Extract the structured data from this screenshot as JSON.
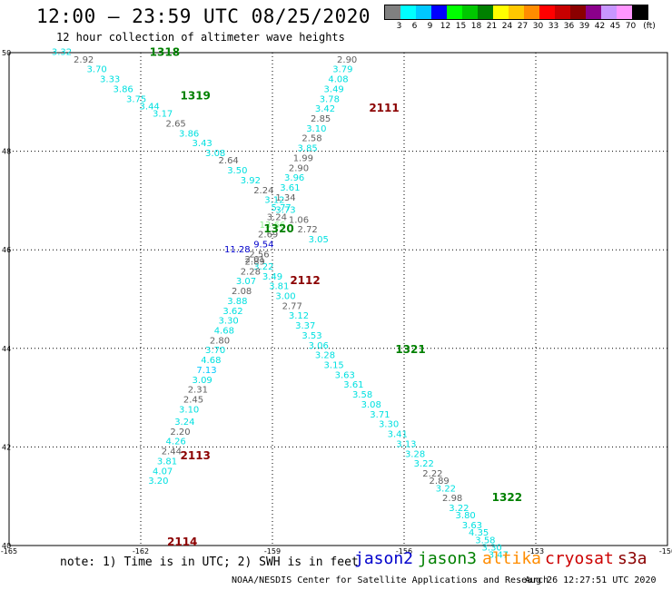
{
  "header": {
    "title": "12:00 – 23:59 UTC 08/25/2020",
    "subtitle": "12 hour collection of altimeter wave heights"
  },
  "legend": {
    "colors": [
      "#808080",
      "#00ffff",
      "#00c8ff",
      "#0000ff",
      "#00ff00",
      "#00c800",
      "#008000",
      "#ffff00",
      "#ffc800",
      "#ff8c00",
      "#ff0000",
      "#c80000",
      "#8b0000",
      "#8b008b",
      "#c896ff",
      "#ff96ff",
      "#000000"
    ],
    "labels": [
      "3",
      "6",
      "9",
      "12",
      "15",
      "18",
      "21",
      "24",
      "27",
      "30",
      "33",
      "36",
      "39",
      "42",
      "45",
      "70"
    ],
    "unit": "(ft)"
  },
  "map": {
    "lon_ticks": [
      "-165",
      "-162",
      "-159",
      "-156",
      "-153",
      "-150"
    ],
    "lat_ticks": [
      "50",
      "48",
      "46",
      "44",
      "42",
      "40"
    ]
  },
  "tracks": [
    {
      "id": "1318",
      "sat_color": "#008000",
      "lat": 49.94,
      "lon": -161.8
    },
    {
      "id": "1319",
      "sat_color": "#008000",
      "lat": 49.05,
      "lon": -161.1
    },
    {
      "id": "1320",
      "sat_color": "#008000",
      "lat": 46.35,
      "lon": -159.2
    },
    {
      "id": "1321",
      "sat_color": "#008000",
      "lat": 43.9,
      "lon": -156.2
    },
    {
      "id": "1322",
      "sat_color": "#008000",
      "lat": 40.9,
      "lon": -154.0
    },
    {
      "id": "2111",
      "sat_color": "#8b0000",
      "lat": 48.8,
      "lon": -156.8
    },
    {
      "id": "2112",
      "sat_color": "#8b0000",
      "lat": 45.3,
      "lon": -158.6
    },
    {
      "id": "2113",
      "sat_color": "#8b0000",
      "lat": 41.75,
      "lon": -161.1
    },
    {
      "id": "2114",
      "sat_color": "#8b0000",
      "lat": 40.0,
      "lon": -161.4
    }
  ],
  "observations": [
    {
      "v": "3.32",
      "c": "#00e0e0",
      "lat": 49.95,
      "lon": -163.8
    },
    {
      "v": "2.92",
      "c": "#606060",
      "lat": 49.8,
      "lon": -163.3
    },
    {
      "v": "3.70",
      "c": "#00e0e0",
      "lat": 49.6,
      "lon": -163.0
    },
    {
      "v": "3.33",
      "c": "#00e0e0",
      "lat": 49.4,
      "lon": -162.7
    },
    {
      "v": "3.86",
      "c": "#00e0e0",
      "lat": 49.2,
      "lon": -162.4
    },
    {
      "v": "3.75",
      "c": "#00e0e0",
      "lat": 49.0,
      "lon": -162.1
    },
    {
      "v": "3.44",
      "c": "#00e0e0",
      "lat": 48.85,
      "lon": -161.8
    },
    {
      "v": "3.17",
      "c": "#00e0e0",
      "lat": 48.7,
      "lon": -161.5
    },
    {
      "v": "2.65",
      "c": "#606060",
      "lat": 48.5,
      "lon": -161.2
    },
    {
      "v": "3.86",
      "c": "#00e0e0",
      "lat": 48.3,
      "lon": -160.9
    },
    {
      "v": "3.43",
      "c": "#00e0e0",
      "lat": 48.1,
      "lon": -160.6
    },
    {
      "v": "3.08",
      "c": "#00e0e0",
      "lat": 47.9,
      "lon": -160.3
    },
    {
      "v": "2.64",
      "c": "#606060",
      "lat": 47.75,
      "lon": -160.0
    },
    {
      "v": "3.50",
      "c": "#00e0e0",
      "lat": 47.55,
      "lon": -159.8
    },
    {
      "v": "3.92",
      "c": "#00e0e0",
      "lat": 47.35,
      "lon": -159.5
    },
    {
      "v": "2.24",
      "c": "#606060",
      "lat": 47.15,
      "lon": -159.2
    },
    {
      "v": "3.12",
      "c": "#00e0e0",
      "lat": 46.95,
      "lon": -158.95
    },
    {
      "v": "3.73",
      "c": "#00e0e0",
      "lat": 46.75,
      "lon": -158.7
    },
    {
      "v": "1.06",
      "c": "#606060",
      "lat": 46.55,
      "lon": -158.4
    },
    {
      "v": "2.72",
      "c": "#606060",
      "lat": 46.35,
      "lon": -158.2
    },
    {
      "v": "3.05",
      "c": "#00e0e0",
      "lat": 46.15,
      "lon": -157.95
    },
    {
      "v": "11.28",
      "c": "#0000cc",
      "lat": 45.95,
      "lon": -159.8
    },
    {
      "v": "2.01",
      "c": "#606060",
      "lat": 45.75,
      "lon": -159.4
    },
    {
      "v": "3.22",
      "c": "#00e0e0",
      "lat": 45.6,
      "lon": -159.2
    },
    {
      "v": "3.49",
      "c": "#00e0e0",
      "lat": 45.4,
      "lon": -159.0
    },
    {
      "v": "3.81",
      "c": "#00e0e0",
      "lat": 45.2,
      "lon": -158.85
    },
    {
      "v": "3.00",
      "c": "#00e0e0",
      "lat": 45.0,
      "lon": -158.7
    },
    {
      "v": "2.77",
      "c": "#606060",
      "lat": 44.8,
      "lon": -158.55
    },
    {
      "v": "3.12",
      "c": "#00e0e0",
      "lat": 44.6,
      "lon": -158.4
    },
    {
      "v": "3.37",
      "c": "#00e0e0",
      "lat": 44.4,
      "lon": -158.25
    },
    {
      "v": "3.53",
      "c": "#00e0e0",
      "lat": 44.2,
      "lon": -158.1
    },
    {
      "v": "3.06",
      "c": "#00e0e0",
      "lat": 44.0,
      "lon": -157.95
    },
    {
      "v": "3.28",
      "c": "#00e0e0",
      "lat": 43.8,
      "lon": -157.8
    },
    {
      "v": "3.15",
      "c": "#00e0e0",
      "lat": 43.6,
      "lon": -157.6
    },
    {
      "v": "3.63",
      "c": "#00e0e0",
      "lat": 43.4,
      "lon": -157.35
    },
    {
      "v": "3.61",
      "c": "#00e0e0",
      "lat": 43.2,
      "lon": -157.15
    },
    {
      "v": "3.58",
      "c": "#00e0e0",
      "lat": 43.0,
      "lon": -156.95
    },
    {
      "v": "3.08",
      "c": "#00e0e0",
      "lat": 42.8,
      "lon": -156.75
    },
    {
      "v": "3.71",
      "c": "#00e0e0",
      "lat": 42.6,
      "lon": -156.55
    },
    {
      "v": "3.30",
      "c": "#00e0e0",
      "lat": 42.4,
      "lon": -156.35
    },
    {
      "v": "3.41",
      "c": "#00e0e0",
      "lat": 42.2,
      "lon": -156.15
    },
    {
      "v": "3.13",
      "c": "#00e0e0",
      "lat": 42.0,
      "lon": -155.95
    },
    {
      "v": "3.28",
      "c": "#00e0e0",
      "lat": 41.8,
      "lon": -155.75
    },
    {
      "v": "3.22",
      "c": "#00e0e0",
      "lat": 41.6,
      "lon": -155.55
    },
    {
      "v": "2.22",
      "c": "#606060",
      "lat": 41.4,
      "lon": -155.35
    },
    {
      "v": "2.89",
      "c": "#606060",
      "lat": 41.25,
      "lon": -155.2
    },
    {
      "v": "3.22",
      "c": "#00e0e0",
      "lat": 41.1,
      "lon": -155.05
    },
    {
      "v": "2.98",
      "c": "#606060",
      "lat": 40.9,
      "lon": -154.9
    },
    {
      "v": "3.22",
      "c": "#00e0e0",
      "lat": 40.7,
      "lon": -154.75
    },
    {
      "v": "3.80",
      "c": "#00e0e0",
      "lat": 40.55,
      "lon": -154.6
    },
    {
      "v": "3.63",
      "c": "#00e0e0",
      "lat": 40.35,
      "lon": -154.45
    },
    {
      "v": "4.35",
      "c": "#00e0e0",
      "lat": 40.2,
      "lon": -154.3
    },
    {
      "v": "3.58",
      "c": "#00e0e0",
      "lat": 40.05,
      "lon": -154.15
    },
    {
      "v": "3.30",
      "c": "#00e0e0",
      "lat": 39.9,
      "lon": -154.0
    },
    {
      "v": "3.47",
      "c": "#00e0e0",
      "lat": 39.75,
      "lon": -153.85
    },
    {
      "v": "2.90",
      "c": "#606060",
      "lat": 49.8,
      "lon": -157.3
    },
    {
      "v": "3.79",
      "c": "#00e0e0",
      "lat": 49.6,
      "lon": -157.4
    },
    {
      "v": "4.08",
      "c": "#00e0e0",
      "lat": 49.4,
      "lon": -157.5
    },
    {
      "v": "3.49",
      "c": "#00e0e0",
      "lat": 49.2,
      "lon": -157.6
    },
    {
      "v": "3.78",
      "c": "#00e0e0",
      "lat": 49.0,
      "lon": -157.7
    },
    {
      "v": "3.42",
      "c": "#00e0e0",
      "lat": 48.8,
      "lon": -157.8
    },
    {
      "v": "2.85",
      "c": "#606060",
      "lat": 48.6,
      "lon": -157.9
    },
    {
      "v": "3.10",
      "c": "#00e0e0",
      "lat": 48.4,
      "lon": -158.0
    },
    {
      "v": "2.58",
      "c": "#606060",
      "lat": 48.2,
      "lon": -158.1
    },
    {
      "v": "3.85",
      "c": "#00e0e0",
      "lat": 48.0,
      "lon": -158.2
    },
    {
      "v": "1.99",
      "c": "#606060",
      "lat": 47.8,
      "lon": -158.3
    },
    {
      "v": "2.90",
      "c": "#606060",
      "lat": 47.6,
      "lon": -158.4
    },
    {
      "v": "3.96",
      "c": "#00e0e0",
      "lat": 47.4,
      "lon": -158.5
    },
    {
      "v": "3.61",
      "c": "#00e0e0",
      "lat": 47.2,
      "lon": -158.6
    },
    {
      "v": "1.34",
      "c": "#606060",
      "lat": 47.0,
      "lon": -158.7
    },
    {
      "v": "5.77",
      "c": "#00e0e0",
      "lat": 46.8,
      "lon": -158.8
    },
    {
      "v": "3.24",
      "c": "#606060",
      "lat": 46.6,
      "lon": -158.9
    },
    {
      "v": "13.66",
      "c": "#90ee90",
      "lat": 46.45,
      "lon": -159.0
    },
    {
      "v": "2.69",
      "c": "#606060",
      "lat": 46.25,
      "lon": -159.1
    },
    {
      "v": "9.54",
      "c": "#0000cc",
      "lat": 46.05,
      "lon": -159.2
    },
    {
      "v": "2.56",
      "c": "#606060",
      "lat": 45.85,
      "lon": -159.3
    },
    {
      "v": "2.89",
      "c": "#606060",
      "lat": 45.7,
      "lon": -159.4
    },
    {
      "v": "2.28",
      "c": "#606060",
      "lat": 45.5,
      "lon": -159.5
    },
    {
      "v": "3.07",
      "c": "#00e0e0",
      "lat": 45.3,
      "lon": -159.6
    },
    {
      "v": "2.08",
      "c": "#606060",
      "lat": 45.1,
      "lon": -159.7
    },
    {
      "v": "3.88",
      "c": "#00e0e0",
      "lat": 44.9,
      "lon": -159.8
    },
    {
      "v": "3.62",
      "c": "#00e0e0",
      "lat": 44.7,
      "lon": -159.9
    },
    {
      "v": "3.30",
      "c": "#00e0e0",
      "lat": 44.5,
      "lon": -160.0
    },
    {
      "v": "4.68",
      "c": "#00e0e0",
      "lat": 44.3,
      "lon": -160.1
    },
    {
      "v": "2.80",
      "c": "#606060",
      "lat": 44.1,
      "lon": -160.2
    },
    {
      "v": "3.70",
      "c": "#00e0e0",
      "lat": 43.9,
      "lon": -160.3
    },
    {
      "v": "4.68",
      "c": "#00e0e0",
      "lat": 43.7,
      "lon": -160.4
    },
    {
      "v": "7.13",
      "c": "#00c8ff",
      "lat": 43.5,
      "lon": -160.5
    },
    {
      "v": "3.09",
      "c": "#00e0e0",
      "lat": 43.3,
      "lon": -160.6
    },
    {
      "v": "2.31",
      "c": "#606060",
      "lat": 43.1,
      "lon": -160.7
    },
    {
      "v": "2.45",
      "c": "#606060",
      "lat": 42.9,
      "lon": -160.8
    },
    {
      "v": "3.10",
      "c": "#00e0e0",
      "lat": 42.7,
      "lon": -160.9
    },
    {
      "v": "3.24",
      "c": "#00e0e0",
      "lat": 42.45,
      "lon": -161.0
    },
    {
      "v": "2.20",
      "c": "#606060",
      "lat": 42.25,
      "lon": -161.1
    },
    {
      "v": "4.26",
      "c": "#00e0e0",
      "lat": 42.05,
      "lon": -161.2
    },
    {
      "v": "2.44",
      "c": "#606060",
      "lat": 41.85,
      "lon": -161.3
    },
    {
      "v": "3.81",
      "c": "#00e0e0",
      "lat": 41.65,
      "lon": -161.4
    },
    {
      "v": "4.07",
      "c": "#00e0e0",
      "lat": 41.45,
      "lon": -161.5
    },
    {
      "v": "3.20",
      "c": "#00e0e0",
      "lat": 41.25,
      "lon": -161.6
    }
  ],
  "footer": {
    "note": "note: 1) Time is in UTC; 2) SWH is in feet",
    "satellites": [
      {
        "name": "jason2",
        "color": "#0000cc"
      },
      {
        "name": "jason3",
        "color": "#008000"
      },
      {
        "name": "altika",
        "color": "#ff8c00"
      },
      {
        "name": "cryosat",
        "color": "#cc0000"
      },
      {
        "name": "s3a",
        "color": "#8b0000"
      }
    ],
    "credit": "NOAA/NESDIS Center for Satellite Applications and Research",
    "timestamp": "Aug 26 12:27:51 UTC 2020"
  }
}
